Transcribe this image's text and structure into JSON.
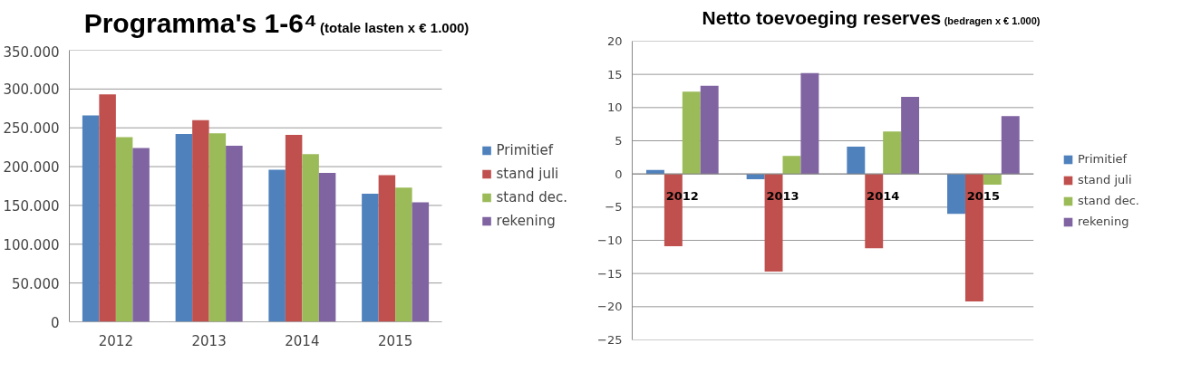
{
  "chart_data": [
    {
      "type": "bar",
      "title": "Programma's 1-6⁴",
      "subtitle": "(totale lasten x € 1.000)",
      "categories": [
        "2012",
        "2013",
        "2014",
        "2015"
      ],
      "series": [
        {
          "name": "Primitief",
          "color": "#4f81bd",
          "values": [
            266000,
            242000,
            196000,
            165000
          ]
        },
        {
          "name": "stand juli",
          "color": "#c0504d",
          "values": [
            293000,
            260000,
            241000,
            189000
          ]
        },
        {
          "name": "stand dec.",
          "color": "#9bbb59",
          "values": [
            238000,
            243000,
            216000,
            173000
          ]
        },
        {
          "name": "rekening",
          "color": "#8064a2",
          "values": [
            224000,
            227000,
            192000,
            154000
          ]
        }
      ],
      "ylim": [
        0,
        350000
      ],
      "yticks": [
        {
          "value": 0,
          "label": "0"
        },
        {
          "value": 50000,
          "label": "50.000"
        },
        {
          "value": 100000,
          "label": "100.000"
        },
        {
          "value": 150000,
          "label": "150.000"
        },
        {
          "value": 200000,
          "label": "200.000"
        },
        {
          "value": 250000,
          "label": "250.000"
        },
        {
          "value": 300000,
          "label": "300.000"
        },
        {
          "value": 350000,
          "label": "350.000"
        }
      ],
      "grid": "y",
      "legend": "right"
    },
    {
      "type": "bar",
      "title": "Netto toevoeging reserves",
      "subtitle": "(bedragen x € 1.000)",
      "categories": [
        "2012",
        "2013",
        "2014",
        "2015"
      ],
      "series": [
        {
          "name": "Primitief",
          "color": "#4f81bd",
          "values": [
            0.6,
            -0.8,
            4.1,
            -6.0
          ]
        },
        {
          "name": "stand juli",
          "color": "#c0504d",
          "values": [
            -10.9,
            -14.7,
            -11.2,
            -19.2
          ]
        },
        {
          "name": "stand dec.",
          "color": "#9bbb59",
          "values": [
            12.4,
            2.7,
            6.4,
            -1.6
          ]
        },
        {
          "name": "rekening",
          "color": "#8064a2",
          "values": [
            13.3,
            15.2,
            11.6,
            8.7
          ]
        }
      ],
      "ylim": [
        -25,
        20
      ],
      "yticks": [
        -25,
        -20,
        -15,
        -10,
        -5,
        0,
        5,
        10,
        15,
        20
      ],
      "grid": "y",
      "legend": "right"
    }
  ]
}
